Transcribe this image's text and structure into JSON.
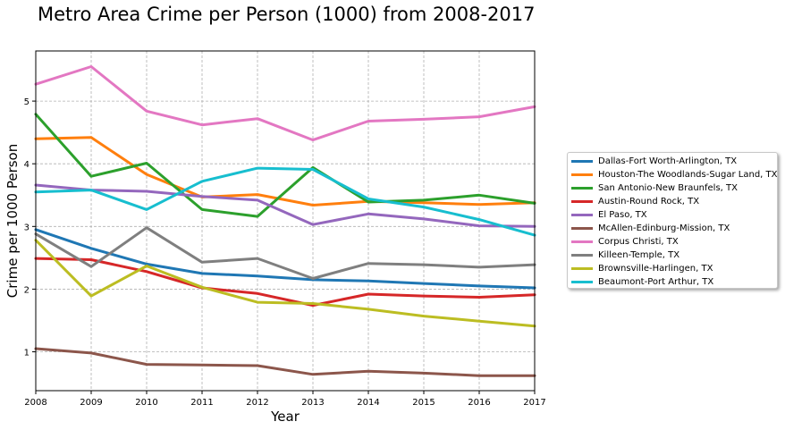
{
  "chart_data": {
    "type": "line",
    "title": "Metro Area Crime per Person (1000) from 2008-2017",
    "xlabel": "Year",
    "ylabel": "Crime per 1000 Person",
    "x": [
      2008,
      2009,
      2010,
      2011,
      2012,
      2013,
      2014,
      2015,
      2016,
      2017
    ],
    "xlim": [
      2008,
      2017
    ],
    "ylim": [
      0.38,
      5.8
    ],
    "yticks": [
      1,
      2,
      3,
      4,
      5
    ],
    "grid": true,
    "legend_position": "right",
    "series": [
      {
        "name": "Dallas-Fort Worth-Arlington, TX",
        "color": "#1f77b4",
        "values": [
          2.95,
          2.65,
          2.4,
          2.25,
          2.21,
          2.15,
          2.13,
          2.09,
          2.05,
          2.02
        ]
      },
      {
        "name": "Houston-The Woodlands-Sugar Land, TX",
        "color": "#ff7f0e",
        "values": [
          4.4,
          4.42,
          3.83,
          3.47,
          3.51,
          3.34,
          3.4,
          3.38,
          3.35,
          3.38
        ]
      },
      {
        "name": "San Antonio-New Braunfels, TX",
        "color": "#2ca02c",
        "values": [
          4.79,
          3.8,
          4.01,
          3.27,
          3.16,
          3.94,
          3.39,
          3.42,
          3.5,
          3.37
        ]
      },
      {
        "name": "Austin-Round Rock, TX",
        "color": "#d62728",
        "values": [
          2.49,
          2.47,
          2.28,
          2.02,
          1.93,
          1.74,
          1.92,
          1.89,
          1.87,
          1.91
        ]
      },
      {
        "name": "El Paso, TX",
        "color": "#9467bd",
        "values": [
          3.66,
          3.58,
          3.56,
          3.48,
          3.42,
          3.03,
          3.2,
          3.12,
          3.01,
          3.0
        ]
      },
      {
        "name": "McAllen-Edinburg-Mission, TX",
        "color": "#8c564b",
        "values": [
          1.05,
          0.98,
          0.8,
          0.79,
          0.78,
          0.64,
          0.69,
          0.66,
          0.62,
          0.62
        ]
      },
      {
        "name": "Corpus Christi, TX",
        "color": "#e377c2",
        "values": [
          5.27,
          5.55,
          4.84,
          4.62,
          4.72,
          4.38,
          4.68,
          4.71,
          4.75,
          4.91
        ]
      },
      {
        "name": "Killeen-Temple, TX",
        "color": "#7f7f7f",
        "values": [
          2.88,
          2.36,
          2.98,
          2.43,
          2.49,
          2.17,
          2.41,
          2.39,
          2.35,
          2.39
        ]
      },
      {
        "name": "Brownsville-Harlingen, TX",
        "color": "#bcbd22",
        "values": [
          2.78,
          1.89,
          2.37,
          2.03,
          1.79,
          1.77,
          1.68,
          1.57,
          1.49,
          1.41
        ]
      },
      {
        "name": "Beaumont-Port Arthur, TX",
        "color": "#17becf",
        "values": [
          3.55,
          3.58,
          3.27,
          3.72,
          3.93,
          3.91,
          3.44,
          3.31,
          3.11,
          2.86
        ]
      }
    ]
  }
}
